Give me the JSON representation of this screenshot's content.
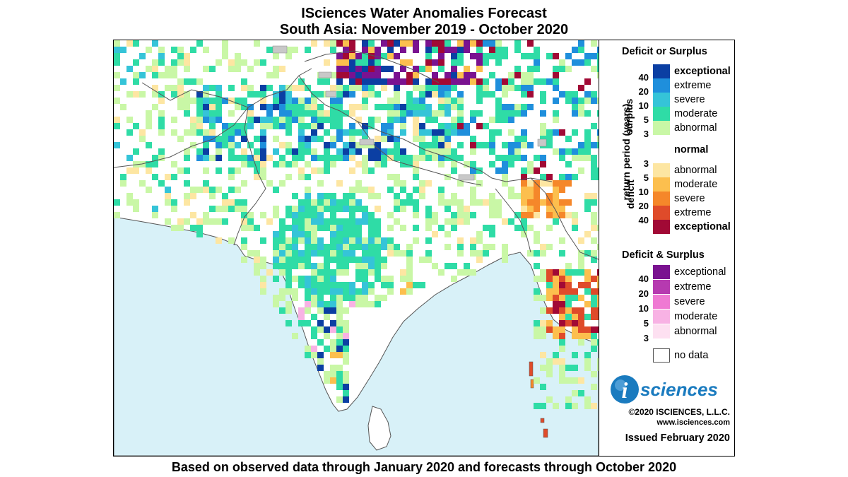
{
  "title": {
    "line1": "ISciences Water Anomalies Forecast",
    "line2": "South Asia: November 2019 - October 2020"
  },
  "footer": "Based on observed data through January 2020 and forecasts through October 2020",
  "legend": {
    "deficit_or_surplus": {
      "title": "Deficit or Surplus",
      "axis_label": "return period (years)",
      "surplus_label": "surplus",
      "deficit_label": "deficit",
      "surplus": [
        {
          "label": "exceptional",
          "color": "#0b3fa3",
          "bold": true
        },
        {
          "label": "extreme",
          "color": "#1f8fdc",
          "bold": false
        },
        {
          "label": "severe",
          "color": "#35c4d8",
          "bold": false
        },
        {
          "label": "moderate",
          "color": "#2fdca6",
          "bold": false
        },
        {
          "label": "abnormal",
          "color": "#c9f7a6",
          "bold": false
        }
      ],
      "surplus_ticks": [
        "40",
        "20",
        "10",
        "5",
        "3"
      ],
      "normal": {
        "label": "normal",
        "color": "#ffffff"
      },
      "deficit": [
        {
          "label": "abnormal",
          "color": "#fde6a2",
          "bold": false
        },
        {
          "label": "moderate",
          "color": "#fcbf4e",
          "bold": false
        },
        {
          "label": "severe",
          "color": "#f5872a",
          "bold": false
        },
        {
          "label": "extreme",
          "color": "#df4b2a",
          "bold": false
        },
        {
          "label": "exceptional",
          "color": "#a10935",
          "bold": true
        }
      ],
      "deficit_ticks": [
        "3",
        "5",
        "10",
        "20",
        "40"
      ]
    },
    "deficit_and_surplus": {
      "title": "Deficit & Surplus",
      "items": [
        {
          "label": "exceptional",
          "color": "#7a1290"
        },
        {
          "label": "extreme",
          "color": "#b63ab0"
        },
        {
          "label": "severe",
          "color": "#ef7ad3"
        },
        {
          "label": "moderate",
          "color": "#f8b2e4"
        },
        {
          "label": "abnormal",
          "color": "#fde0f1"
        }
      ],
      "ticks": [
        "40",
        "20",
        "10",
        "5",
        "3"
      ]
    },
    "no_data": {
      "label": "no data",
      "color": "#c8c8c8"
    }
  },
  "logo": {
    "i": "i",
    "word": "sciences",
    "color": "#1a7bbf"
  },
  "copyright": "©2020 ISCIENCES, L.L.C.",
  "website": "www.isciences.com",
  "issued": "Issued February 2020",
  "map": {
    "ocean_color": "#d8f1f8",
    "land_color": "#ffffff",
    "border_color": "#555555"
  }
}
